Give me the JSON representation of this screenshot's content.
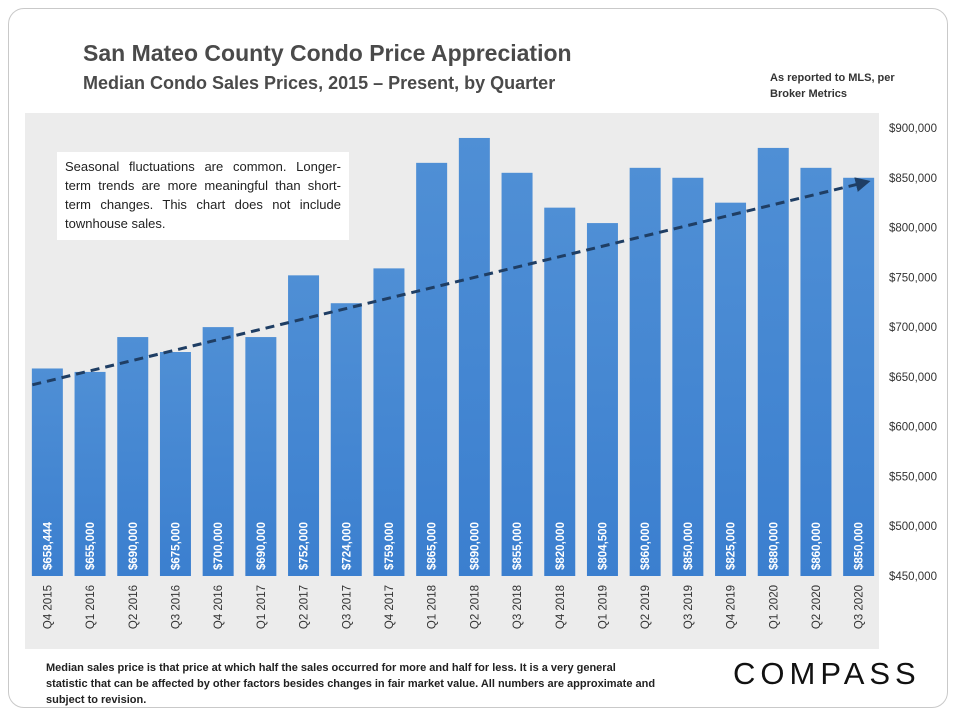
{
  "header": {
    "title": "San Mateo County Condo Price Appreciation",
    "subtitle": "Median Condo Sales Prices, 2015 – Present, by Quarter",
    "source": "As reported to MLS, per Broker Metrics"
  },
  "annotation": "Seasonal fluctuations are common. Longer-term trends are more meaningful than short-term changes. This chart does not include townhouse sales.",
  "footer": "Median sales price is that price at which half the sales occurred for more and half for less. It is a very general statistic that can be affected by other factors besides changes in fair market value. All numbers are approximate and subject to revision.",
  "brand": "COMPASS",
  "colors": {
    "bar": "#4f8fd5",
    "trend": "#1f3e64",
    "plot_background": "#ececec"
  },
  "chart_data": {
    "type": "bar",
    "categories": [
      "Q4 2015",
      "Q1 2016",
      "Q2 2016",
      "Q3 2016",
      "Q4 2016",
      "Q1 2017",
      "Q2 2017",
      "Q3 2017",
      "Q4 2017",
      "Q1 2018",
      "Q2 2018",
      "Q3 2018",
      "Q4 2018",
      "Q1 2019",
      "Q2 2019",
      "Q3 2019",
      "Q4 2019",
      "Q1 2020",
      "Q2 2020",
      "Q3 2020"
    ],
    "values": [
      658444,
      655000,
      690000,
      675000,
      700000,
      690000,
      752000,
      724000,
      759000,
      865000,
      890000,
      855000,
      820000,
      804500,
      860000,
      850000,
      825000,
      880000,
      860000,
      850000
    ],
    "data_labels": [
      "$658,444",
      "$655,000",
      "$690,000",
      "$675,000",
      "$700,000",
      "$690,000",
      "$752,000",
      "$724,000",
      "$759,000",
      "$865,000",
      "$890,000",
      "$855,000",
      "$820,000",
      "$804,500",
      "$860,000",
      "$850,000",
      "$825,000",
      "$880,000",
      "$860,000",
      "$850,000"
    ],
    "ylim": [
      450000,
      900000
    ],
    "y_ticks": [
      450000,
      500000,
      550000,
      600000,
      650000,
      700000,
      750000,
      800000,
      850000,
      900000
    ],
    "y_tick_labels": [
      "$450,000",
      "$500,000",
      "$550,000",
      "$600,000",
      "$650,000",
      "$700,000",
      "$750,000",
      "$800,000",
      "$850,000",
      "$900,000"
    ],
    "y_axis_side": "right",
    "trendline": {
      "style": "dashed",
      "arrow": true,
      "start": {
        "category": "Q4 2015",
        "value": 642000
      },
      "end": {
        "category": "Q3 2020",
        "value": 846000
      }
    },
    "grid": false,
    "xlabel": "",
    "ylabel": ""
  }
}
